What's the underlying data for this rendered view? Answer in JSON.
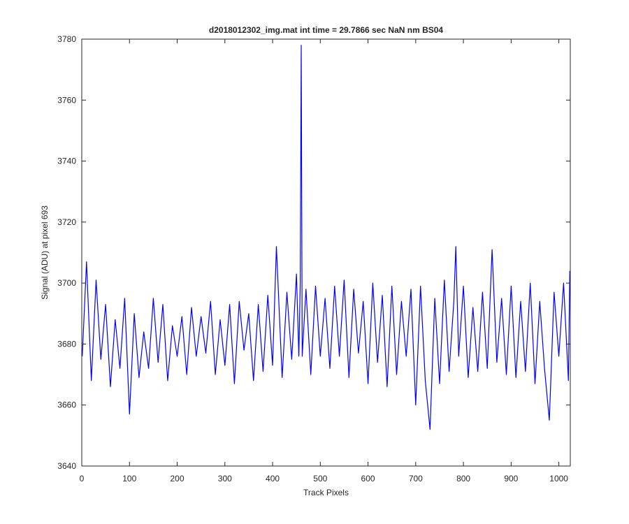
{
  "chart_data": {
    "type": "line",
    "title": "d2018012302_img.mat int time = 29.7866 sec  NaN nm BS04",
    "xlabel": "Track Pixels",
    "ylabel": "Signal (ADU) at pixel 693",
    "xlim": [
      0,
      1024
    ],
    "ylim": [
      3640,
      3780
    ],
    "x_ticks": [
      "0",
      "100",
      "200",
      "300",
      "400",
      "500",
      "600",
      "700",
      "800",
      "900",
      "1000"
    ],
    "y_ticks": [
      "3640",
      "3660",
      "3680",
      "3700",
      "3720",
      "3740",
      "3760",
      "3780"
    ],
    "grid": false,
    "legend": "none",
    "series": [
      {
        "color": "#0000ff",
        "x": [
          1,
          10,
          20,
          30,
          40,
          50,
          60,
          70,
          80,
          90,
          100,
          110,
          120,
          130,
          140,
          150,
          160,
          170,
          180,
          190,
          200,
          210,
          220,
          230,
          240,
          250,
          260,
          270,
          280,
          290,
          300,
          310,
          320,
          330,
          340,
          350,
          360,
          370,
          380,
          390,
          400,
          408,
          420,
          430,
          440,
          450,
          455,
          458,
          460,
          462,
          470,
          480,
          490,
          500,
          510,
          520,
          530,
          540,
          550,
          560,
          570,
          580,
          590,
          600,
          610,
          620,
          630,
          640,
          650,
          660,
          670,
          680,
          690,
          700,
          710,
          720,
          730,
          740,
          750,
          760,
          770,
          780,
          784,
          790,
          800,
          810,
          820,
          830,
          840,
          850,
          860,
          870,
          880,
          890,
          900,
          910,
          920,
          930,
          940,
          950,
          960,
          970,
          980,
          990,
          1000,
          1010,
          1020,
          1023
        ],
        "y": [
          3676,
          3707,
          3668,
          3701,
          3675,
          3693,
          3666,
          3688,
          3672,
          3695,
          3657,
          3690,
          3669,
          3684,
          3672,
          3695,
          3674,
          3693,
          3668,
          3686,
          3676,
          3689,
          3670,
          3692,
          3676,
          3689,
          3677,
          3694,
          3670,
          3688,
          3673,
          3693,
          3667,
          3694,
          3678,
          3690,
          3668,
          3693,
          3671,
          3696,
          3673,
          3712,
          3669,
          3697,
          3675,
          3703,
          3676,
          3700,
          3778,
          3676,
          3698,
          3670,
          3699,
          3676,
          3695,
          3672,
          3699,
          3676,
          3701,
          3669,
          3698,
          3677,
          3694,
          3667,
          3700,
          3674,
          3696,
          3666,
          3699,
          3670,
          3694,
          3676,
          3698,
          3660,
          3699,
          3668,
          3652,
          3695,
          3667,
          3701,
          3671,
          3694,
          3712,
          3676,
          3699,
          3669,
          3692,
          3671,
          3697,
          3672,
          3711,
          3674,
          3695,
          3670,
          3699,
          3669,
          3694,
          3671,
          3700,
          3667,
          3694,
          3672,
          3655,
          3697,
          3676,
          3700,
          3668,
          3704
        ]
      }
    ]
  }
}
